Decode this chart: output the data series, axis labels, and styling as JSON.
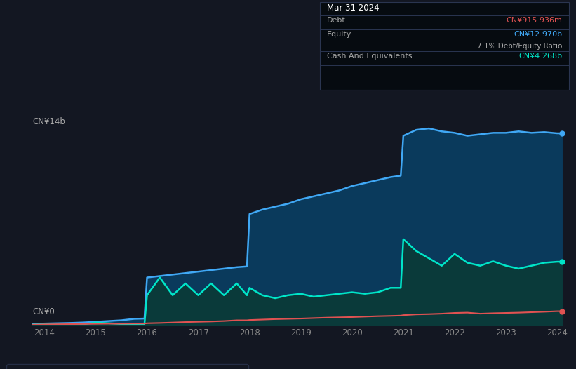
{
  "background_color": "#131722",
  "plot_bg_color": "#131722",
  "title_box": {
    "date": "Mar 31 2024",
    "debt_label": "Debt",
    "debt_value": "CN¥915.936m",
    "debt_color": "#e05252",
    "equity_label": "Equity",
    "equity_value": "CN¥12.970b",
    "equity_color": "#40a8f5",
    "ratio_text": "7.1% Debt/Equity Ratio",
    "cash_label": "Cash And Equivalents",
    "cash_value": "CN¥4.268b",
    "cash_color": "#00e5c8"
  },
  "ylabel": "CN¥14b",
  "ylabel0": "CN¥0",
  "x_ticks": [
    2014,
    2015,
    2016,
    2017,
    2018,
    2019,
    2020,
    2021,
    2022,
    2023,
    2024
  ],
  "equity_color": "#40a8f5",
  "equity_fill": "#0a3a5c",
  "debt_color": "#e05252",
  "cash_color": "#00e5c8",
  "cash_fill": "#0a3a3a",
  "years": [
    2013.75,
    2014.0,
    2014.25,
    2014.5,
    2014.75,
    2015.0,
    2015.25,
    2015.5,
    2015.75,
    2015.95,
    2016.0,
    2016.25,
    2016.5,
    2016.75,
    2017.0,
    2017.25,
    2017.5,
    2017.75,
    2017.95,
    2018.0,
    2018.25,
    2018.5,
    2018.75,
    2019.0,
    2019.25,
    2019.5,
    2019.75,
    2020.0,
    2020.25,
    2020.5,
    2020.75,
    2020.95,
    2021.0,
    2021.25,
    2021.5,
    2021.75,
    2022.0,
    2022.25,
    2022.5,
    2022.75,
    2023.0,
    2023.25,
    2023.5,
    2023.75,
    2024.0,
    2024.1
  ],
  "equity": [
    0.05,
    0.08,
    0.1,
    0.12,
    0.15,
    0.2,
    0.25,
    0.3,
    0.4,
    0.42,
    3.2,
    3.3,
    3.4,
    3.5,
    3.6,
    3.7,
    3.8,
    3.9,
    3.95,
    7.5,
    7.8,
    8.0,
    8.2,
    8.5,
    8.7,
    8.9,
    9.1,
    9.4,
    9.6,
    9.8,
    10.0,
    10.1,
    12.8,
    13.2,
    13.3,
    13.1,
    13.0,
    12.8,
    12.9,
    13.0,
    13.0,
    13.1,
    13.0,
    13.05,
    12.97,
    12.97
  ],
  "cash": [
    0.0,
    0.02,
    0.01,
    0.02,
    0.03,
    0.15,
    0.1,
    0.05,
    0.05,
    0.05,
    2.0,
    3.2,
    2.0,
    2.8,
    2.0,
    2.8,
    2.0,
    2.8,
    2.0,
    2.5,
    2.0,
    1.8,
    2.0,
    2.1,
    1.9,
    2.0,
    2.1,
    2.2,
    2.1,
    2.2,
    2.5,
    2.5,
    5.8,
    5.0,
    4.5,
    4.0,
    4.8,
    4.2,
    4.0,
    4.3,
    4.0,
    3.8,
    4.0,
    4.2,
    4.268,
    4.268
  ],
  "debt": [
    0.0,
    0.02,
    0.03,
    0.04,
    0.05,
    0.06,
    0.07,
    0.07,
    0.08,
    0.08,
    0.1,
    0.12,
    0.15,
    0.18,
    0.2,
    0.22,
    0.25,
    0.3,
    0.3,
    0.32,
    0.35,
    0.38,
    0.4,
    0.42,
    0.45,
    0.48,
    0.5,
    0.52,
    0.55,
    0.58,
    0.6,
    0.62,
    0.65,
    0.7,
    0.72,
    0.75,
    0.8,
    0.82,
    0.75,
    0.78,
    0.8,
    0.82,
    0.85,
    0.88,
    0.916,
    0.916
  ]
}
